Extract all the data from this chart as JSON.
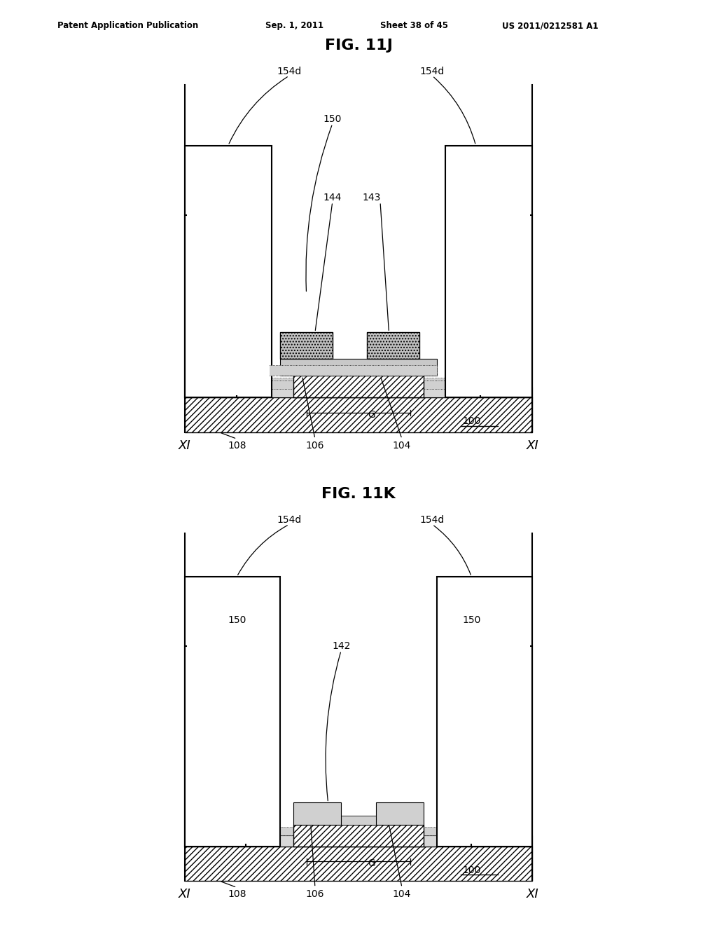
{
  "bg_color": "#ffffff",
  "header_text": "Patent Application Publication",
  "header_date": "Sep. 1, 2011",
  "header_sheet": "Sheet 38 of 45",
  "header_patent": "US 2011/0212581 A1",
  "fig_title_J": "FIG. 11J",
  "fig_title_K": "FIG. 11K"
}
